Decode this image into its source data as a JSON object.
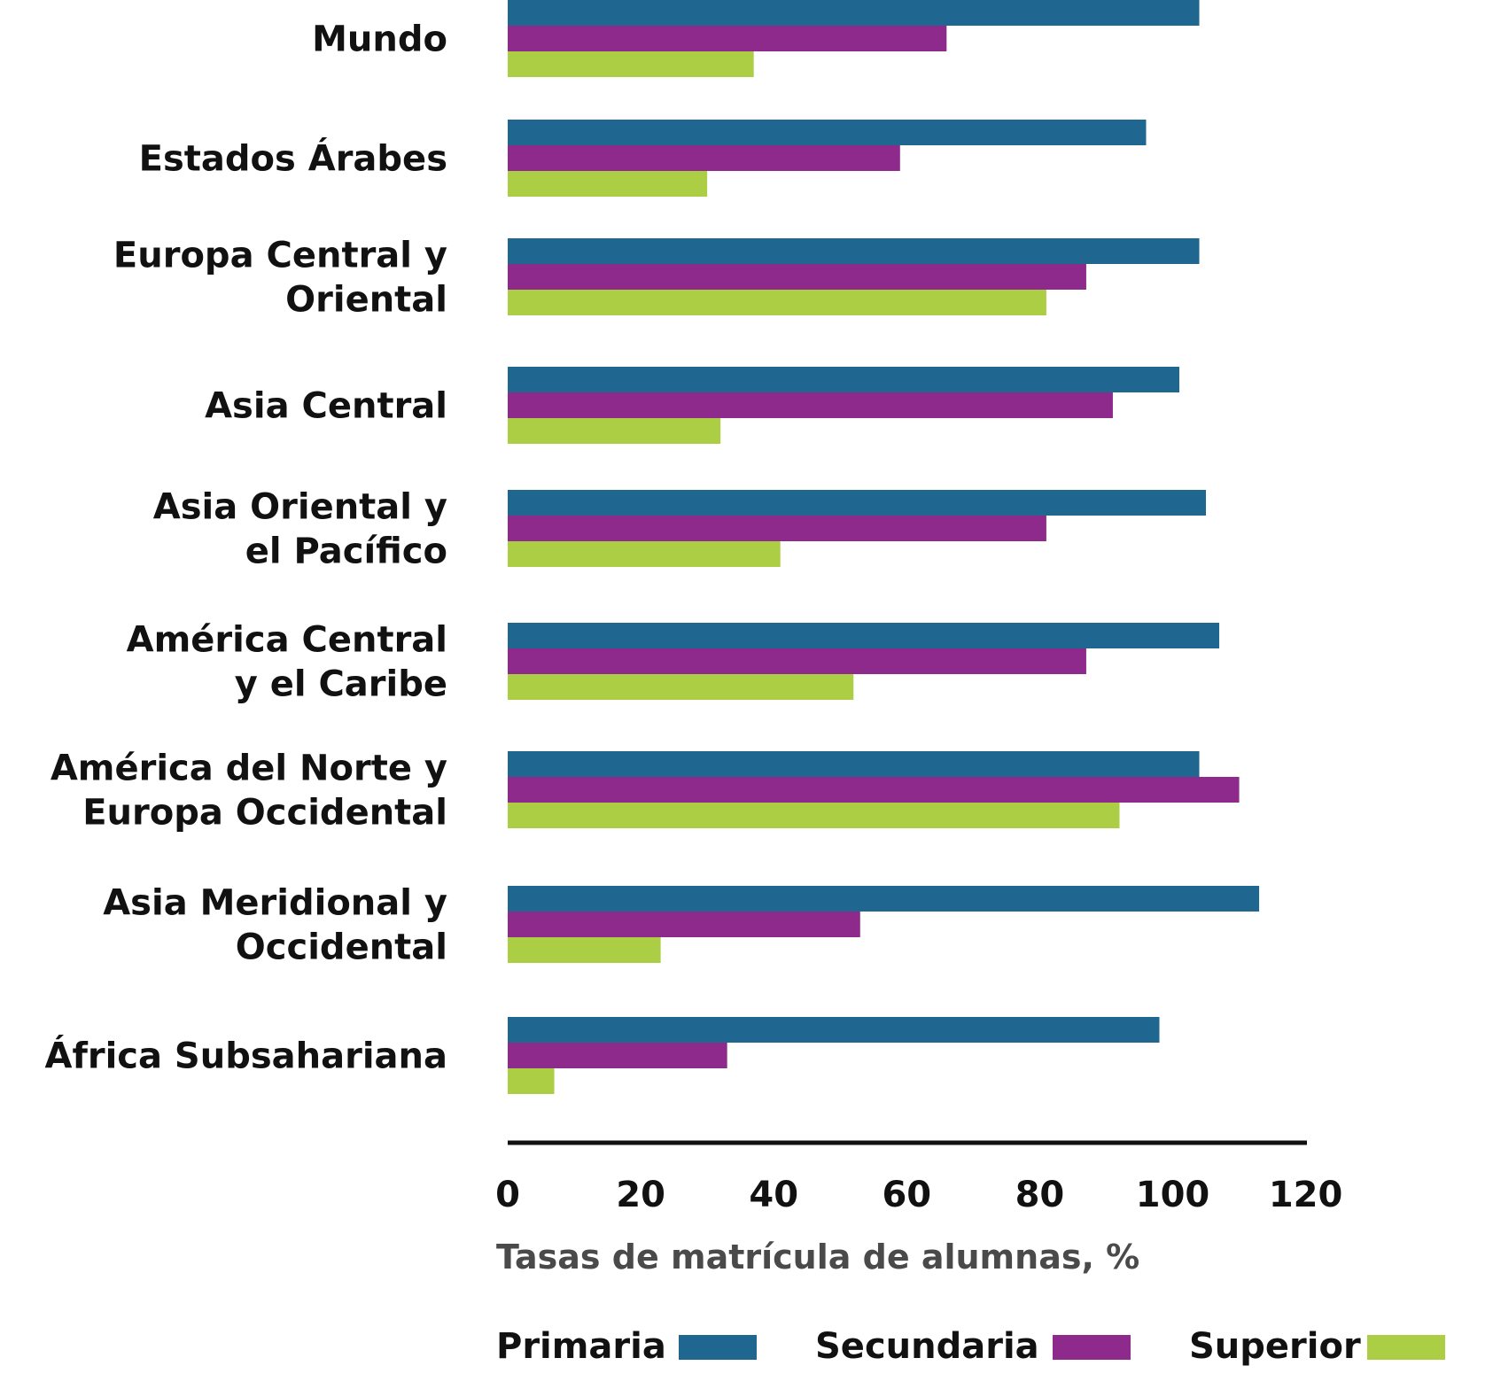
{
  "chart_data": {
    "type": "bar",
    "orientation": "horizontal",
    "categories": [
      [
        "Mundo"
      ],
      [
        "Estados Árabes"
      ],
      [
        "Europa Central y",
        "Oriental"
      ],
      [
        "Asia Central"
      ],
      [
        "Asia Oriental y",
        "el Pacífico"
      ],
      [
        "América Central",
        "y el Caribe"
      ],
      [
        "América del Norte y",
        "Europa Occidental"
      ],
      [
        "Asia Meridional y",
        "Occidental"
      ],
      [
        "África Subsahariana"
      ]
    ],
    "highlighted_category_index": 5,
    "series": [
      {
        "name": "Primaria",
        "color": "#1f6690",
        "values": [
          104,
          96,
          104,
          101,
          105,
          107,
          104,
          113,
          98
        ]
      },
      {
        "name": "Secundaria",
        "color": "#8e2a8c",
        "values": [
          66,
          59,
          87,
          91,
          81,
          87,
          110,
          53,
          33
        ]
      },
      {
        "name": "Superior",
        "color": "#acce45",
        "values": [
          37,
          30,
          81,
          32,
          41,
          52,
          92,
          23,
          7
        ]
      }
    ],
    "xlabel": "Tasas de matrícula de alumnas, %",
    "xlim": [
      0,
      120
    ],
    "xticks": [
      "0",
      "20",
      "40",
      "60",
      "80",
      "100",
      "120"
    ],
    "grid": false,
    "legend_position": "bottom",
    "colors": {
      "text": "#111111",
      "highlight": "#e8141b",
      "axis": "#111111",
      "xlabel": "#4a4a4a"
    }
  }
}
